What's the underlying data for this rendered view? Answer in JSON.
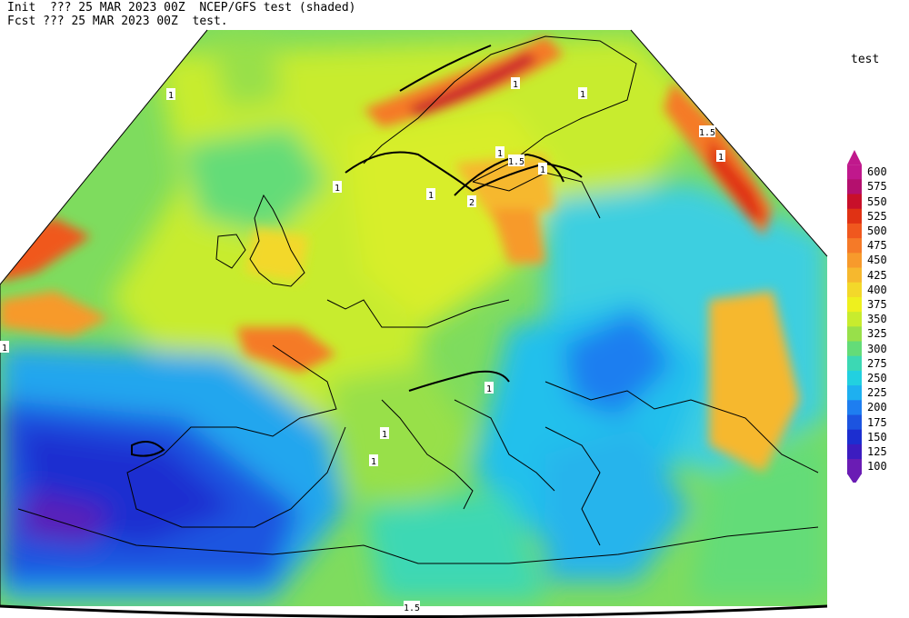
{
  "header": {
    "line1": "Init  ??? 25 MAR 2023 00Z  NCEP/GFS test (shaded)",
    "line2": "Fcst ??? 25 MAR 2023 00Z  test."
  },
  "legend": {
    "title": "test",
    "levels": [
      {
        "label": "600",
        "color": "#c0188c"
      },
      {
        "label": "575",
        "color": "#b4106e"
      },
      {
        "label": "550",
        "color": "#c8102a"
      },
      {
        "label": "525",
        "color": "#e03214"
      },
      {
        "label": "500",
        "color": "#f0581e"
      },
      {
        "label": "475",
        "color": "#f57a28"
      },
      {
        "label": "450",
        "color": "#f79a2c"
      },
      {
        "label": "425",
        "color": "#f6b82e"
      },
      {
        "label": "400",
        "color": "#f3d82a"
      },
      {
        "label": "375",
        "color": "#eef01e"
      },
      {
        "label": "350",
        "color": "#c8ec2e"
      },
      {
        "label": "325",
        "color": "#98e04a"
      },
      {
        "label": "300",
        "color": "#64dc78"
      },
      {
        "label": "275",
        "color": "#3cd8b4"
      },
      {
        "label": "250",
        "color": "#22d0e0"
      },
      {
        "label": "225",
        "color": "#1eb0f0"
      },
      {
        "label": "200",
        "color": "#1e7ef0"
      },
      {
        "label": "175",
        "color": "#1c54e0"
      },
      {
        "label": "150",
        "color": "#1c2ed0"
      },
      {
        "label": "125",
        "color": "#3c1cc0"
      },
      {
        "label": "100",
        "color": "#6a1cb4"
      }
    ]
  },
  "contour_labels": [
    "1",
    "1",
    "1.5",
    "1",
    "1",
    "1",
    "1",
    "1.5",
    "1",
    "1",
    "2",
    "1",
    "1",
    "1",
    "1",
    "1.5"
  ]
}
